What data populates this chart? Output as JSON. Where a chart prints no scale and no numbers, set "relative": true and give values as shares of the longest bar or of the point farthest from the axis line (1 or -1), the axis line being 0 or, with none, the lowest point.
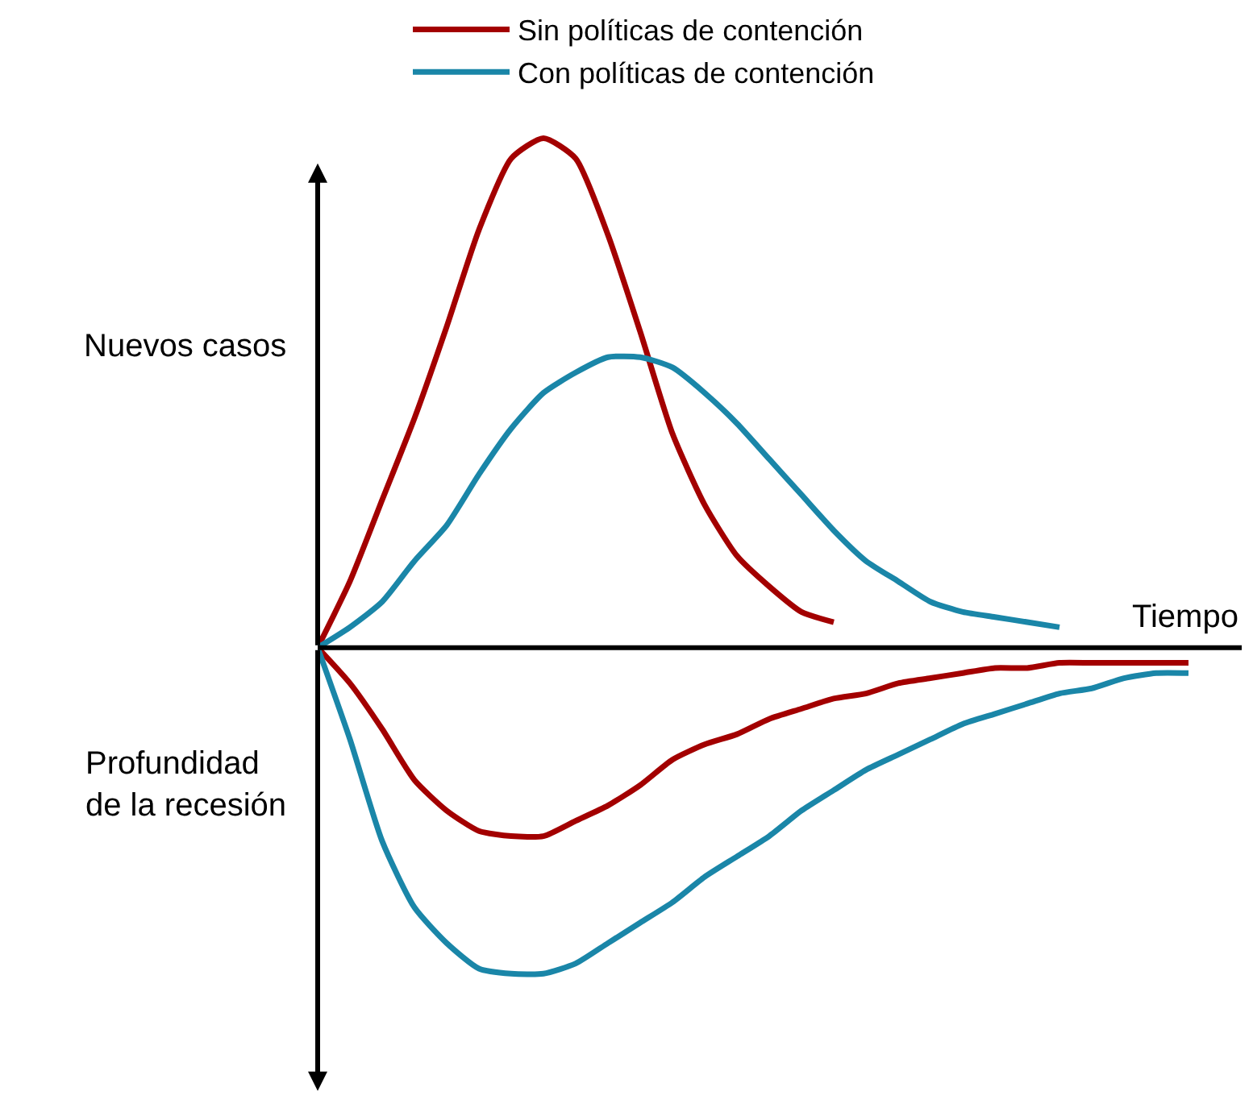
{
  "chart_data": {
    "type": "line",
    "relative": true,
    "xlabel": "Tiempo",
    "annotations": [
      "Nuevos casos",
      "Profundidad\nde la recesión"
    ],
    "categories": [
      null,
      null,
      null,
      null,
      null,
      null,
      null,
      null,
      null,
      null,
      null,
      null,
      null,
      null,
      null,
      null,
      null,
      null,
      null,
      null,
      null,
      null,
      null,
      null,
      null,
      null,
      null,
      null,
      null
    ],
    "series": [
      {
        "name": "Sin políticas de contención",
        "color": "#a30000",
        "values": [
          0,
          0.13,
          0.29,
          0.45,
          0.63,
          0.82,
          0.96,
          1.0,
          0.96,
          0.81,
          0.62,
          0.42,
          0.28,
          0.18,
          0.12,
          0.07,
          0.05,
          null,
          null,
          null,
          null,
          null,
          null,
          null,
          null,
          null,
          null,
          null,
          null
        ]
      },
      {
        "name": "Con políticas de contención",
        "color": "#1a86a8",
        "values": [
          0,
          0.04,
          0.09,
          0.17,
          0.24,
          0.34,
          0.43,
          0.5,
          0.54,
          0.57,
          0.57,
          0.55,
          0.5,
          0.44,
          0.37,
          0.3,
          0.23,
          0.17,
          0.13,
          0.09,
          0.07,
          0.06,
          0.05,
          0.04,
          null,
          null,
          null,
          null,
          null
        ]
      },
      {
        "color": "#a30000",
        "values": [
          0,
          -0.07,
          -0.16,
          -0.26,
          -0.32,
          -0.36,
          -0.37,
          -0.37,
          -0.34,
          -0.31,
          -0.27,
          -0.22,
          -0.19,
          -0.17,
          -0.14,
          -0.12,
          -0.1,
          -0.09,
          -0.07,
          -0.06,
          -0.05,
          -0.04,
          -0.04,
          -0.03,
          -0.03,
          -0.03,
          -0.03,
          -0.03,
          null
        ]
      },
      {
        "color": "#1a86a8",
        "values": [
          0,
          -0.18,
          -0.38,
          -0.51,
          -0.58,
          -0.63,
          -0.64,
          -0.64,
          -0.62,
          -0.58,
          -0.54,
          -0.5,
          -0.45,
          -0.41,
          -0.37,
          -0.32,
          -0.28,
          -0.24,
          -0.21,
          -0.18,
          -0.15,
          -0.13,
          -0.11,
          -0.09,
          -0.08,
          -0.06,
          -0.05,
          -0.05,
          null
        ]
      }
    ],
    "legend": "top",
    "marker": "none",
    "line_style": "solid"
  }
}
